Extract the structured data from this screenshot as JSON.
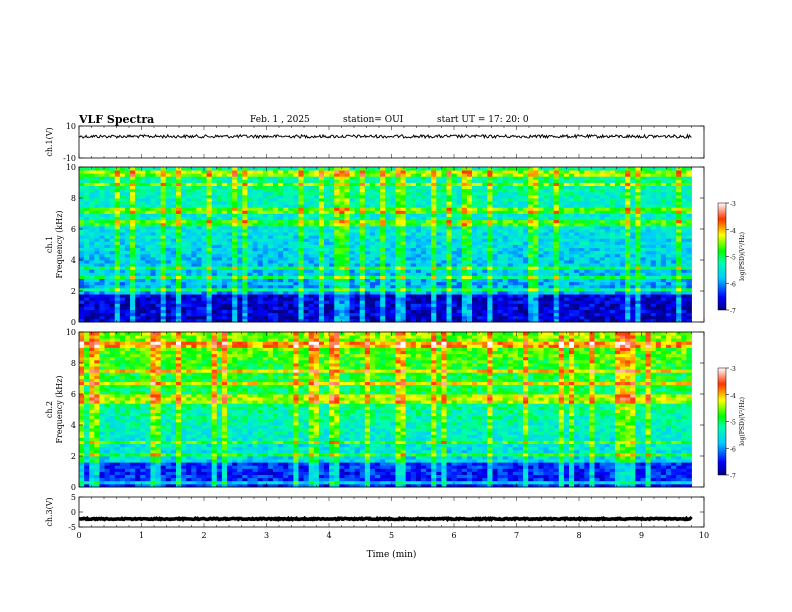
{
  "header": {
    "title": "VLF Spectra",
    "date": "Feb. 1  , 2025",
    "station": "station= OUI",
    "start": "start  UT  =   17: 20: 0"
  },
  "chart_data": [
    {
      "type": "line",
      "name": "ch.1 waveform",
      "ylabel": "ch.1(V)",
      "ylim": [
        -10,
        10
      ],
      "yticks": [
        "10",
        "-10"
      ],
      "baseline": 3.5
    },
    {
      "type": "heatmap",
      "ylabel_top": "ch.1",
      "ylabel": "Frequency  (kHz)",
      "ylim": [
        0,
        10
      ],
      "yticks": [
        "0",
        "2",
        "4",
        "6",
        "8",
        "10"
      ],
      "colorbar": {
        "label": "log(PSD)(V²/Hz)",
        "range": [
          -7,
          -3
        ],
        "ticks": [
          "-3",
          "-4",
          "-5",
          "-6",
          "-7"
        ]
      }
    },
    {
      "type": "heatmap",
      "ylabel_top": "ch.2",
      "ylabel": "Frequency  (kHz)",
      "ylim": [
        0,
        10
      ],
      "yticks": [
        "0",
        "2",
        "4",
        "6",
        "8",
        "10"
      ],
      "colorbar": {
        "label": "log(PSD)(V²/Hz)",
        "range": [
          -7,
          -3
        ],
        "ticks": [
          "-3",
          "-4",
          "-5",
          "-6",
          "-7"
        ]
      }
    },
    {
      "type": "line",
      "name": "ch.3 waveform",
      "ylabel": "ch.3(V)",
      "ylim": [
        -5,
        5
      ],
      "yticks": [
        "5",
        "0",
        "-5"
      ],
      "baseline": -2.3
    }
  ],
  "xaxis": {
    "label": "Time  (min)",
    "range": [
      0,
      10
    ],
    "ticks": [
      "0",
      "1",
      "2",
      "3",
      "4",
      "5",
      "6",
      "7",
      "8",
      "9",
      "10"
    ],
    "data_end": 9.8
  }
}
